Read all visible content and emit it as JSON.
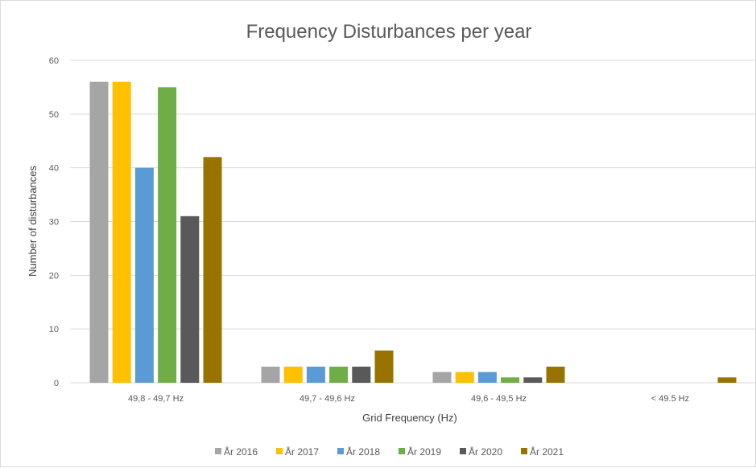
{
  "chart_data": {
    "type": "bar",
    "title": "Frequency Disturbances per year",
    "xlabel": "Grid Frequency (Hz)",
    "ylabel": "Number of disturbances",
    "ylim": [
      0,
      60
    ],
    "yticks": [
      "0",
      "10",
      "20",
      "30",
      "40",
      "50",
      "60"
    ],
    "grid": true,
    "legend_position": "bottom",
    "categories": [
      "49,8 - 49,7 Hz",
      "49,7 - 49,6 Hz",
      "49,6 - 49,5 Hz",
      "< 49.5 Hz"
    ],
    "series": [
      {
        "name": "År 2016",
        "color": "#a5a5a5",
        "values": [
          56,
          3,
          2,
          0
        ]
      },
      {
        "name": "År 2017",
        "color": "#ffc000",
        "values": [
          56,
          3,
          2,
          0
        ]
      },
      {
        "name": "År 2018",
        "color": "#5b9bd5",
        "values": [
          40,
          3,
          2,
          0
        ]
      },
      {
        "name": "År 2019",
        "color": "#70ad47",
        "values": [
          55,
          3,
          1,
          0
        ]
      },
      {
        "name": "År 2020",
        "color": "#595959",
        "values": [
          31,
          3,
          1,
          0
        ]
      },
      {
        "name": "År 2021",
        "color": "#997300",
        "values": [
          42,
          6,
          3,
          1
        ]
      }
    ]
  }
}
